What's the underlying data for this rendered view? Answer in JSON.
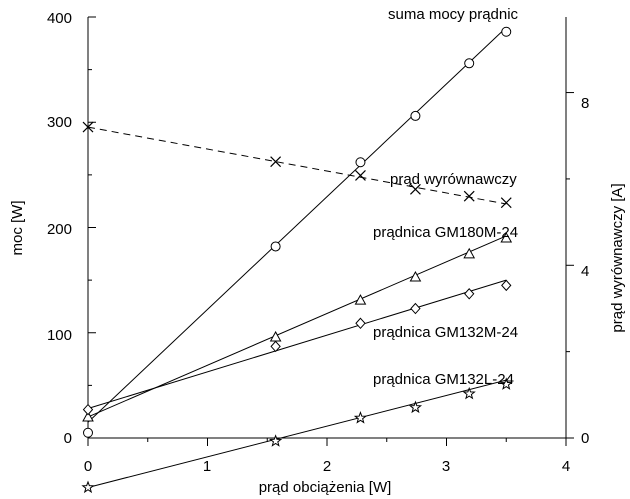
{
  "chart_data": {
    "type": "line",
    "xlabel": "prąd obciążenia [W]",
    "ylabel": "moc [W]",
    "y2label": "prąd wyrównawczy [A]",
    "xlim": [
      0,
      4
    ],
    "ylim": [
      0,
      400
    ],
    "y2lim": [
      0,
      9.75
    ],
    "x_ticks": [
      "0",
      "1",
      "2",
      "3",
      "4"
    ],
    "y_ticks": [
      "0",
      "100",
      "200",
      "300",
      "400"
    ],
    "y2_ticks": [
      "0",
      "4",
      "8"
    ],
    "grid": false,
    "series": [
      {
        "name": "suma mocy prądnic",
        "axis": "left",
        "marker": "circle",
        "dash": false,
        "points": [
          [
            0,
            5
          ],
          [
            1.57,
            182
          ],
          [
            2.28,
            262
          ],
          [
            2.74,
            306
          ],
          [
            3.19,
            356
          ],
          [
            3.5,
            386
          ]
        ],
        "fit": [
          [
            0,
            15
          ],
          [
            3.5,
            390
          ]
        ]
      },
      {
        "name": "prąd wyrównawczy",
        "axis": "right",
        "marker": "x",
        "dash": true,
        "points": [
          [
            0,
            7.2
          ],
          [
            1.57,
            6.4
          ],
          [
            2.28,
            6.08
          ],
          [
            2.74,
            5.76
          ],
          [
            3.19,
            5.6
          ],
          [
            3.5,
            5.45
          ]
        ],
        "fit": [
          [
            0,
            7.2
          ],
          [
            3.5,
            5.42
          ]
        ]
      },
      {
        "name": "prądnica GM180M-24",
        "axis": "left",
        "marker": "triangle",
        "dash": false,
        "points": [
          [
            0,
            20
          ],
          [
            1.57,
            96
          ],
          [
            2.28,
            131
          ],
          [
            2.74,
            153
          ],
          [
            3.19,
            175
          ],
          [
            3.5,
            190
          ]
        ],
        "fit": [
          [
            0,
            20
          ],
          [
            3.5,
            192
          ]
        ]
      },
      {
        "name": "prądnica GM132M-24",
        "axis": "left",
        "marker": "diamond",
        "dash": false,
        "points": [
          [
            0,
            27
          ],
          [
            1.57,
            87
          ],
          [
            2.28,
            109
          ],
          [
            2.74,
            123
          ],
          [
            3.19,
            137
          ],
          [
            3.5,
            145
          ]
        ],
        "fit": [
          [
            0,
            28
          ],
          [
            3.5,
            150
          ]
        ]
      },
      {
        "name": "prądnica GM132L-24",
        "axis": "left",
        "marker": "star",
        "dash": false,
        "points": [
          [
            0,
            -47
          ],
          [
            1.57,
            -3
          ],
          [
            2.28,
            19
          ],
          [
            2.74,
            29
          ],
          [
            3.19,
            42
          ],
          [
            3.5,
            51
          ]
        ],
        "fit": [
          [
            0,
            -47
          ],
          [
            3.5,
            55
          ]
        ]
      }
    ]
  }
}
